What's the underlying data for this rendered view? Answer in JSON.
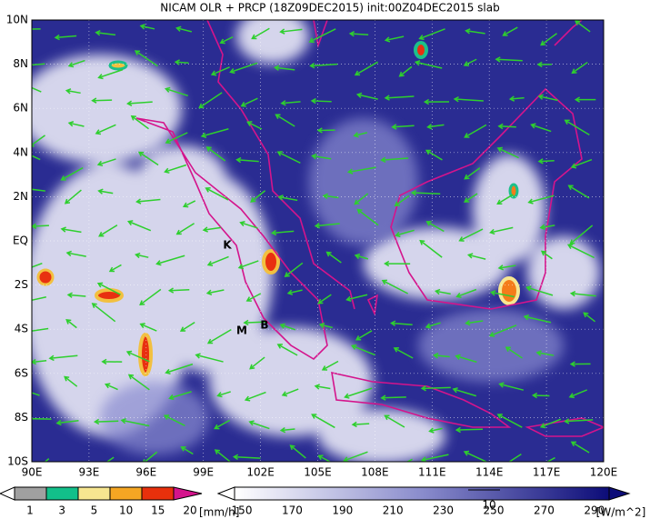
{
  "title": "NICAM OLR + PRCP (18Z09DEC2015) init:00Z04DEC2015 slab",
  "map": {
    "lon_labels": [
      "90E",
      "93E",
      "96E",
      "99E",
      "102E",
      "105E",
      "108E",
      "111E",
      "114E",
      "117E",
      "120E"
    ],
    "lat_labels": [
      "10N",
      "8N",
      "6N",
      "4N",
      "2N",
      "EQ",
      "2S",
      "4S",
      "6S",
      "8S",
      "10S"
    ],
    "markers": [
      {
        "label": "K"
      },
      {
        "label": "M"
      },
      {
        "label": "B"
      }
    ]
  },
  "precip_legend": {
    "labels": [
      1,
      3,
      5,
      10,
      15,
      20
    ],
    "unit": "[mm/h]"
  },
  "olr_legend": {
    "labels": [
      150,
      170,
      190,
      210,
      230,
      250,
      270,
      290
    ],
    "unit": "[W/m^2]",
    "vector_label": 10
  }
}
